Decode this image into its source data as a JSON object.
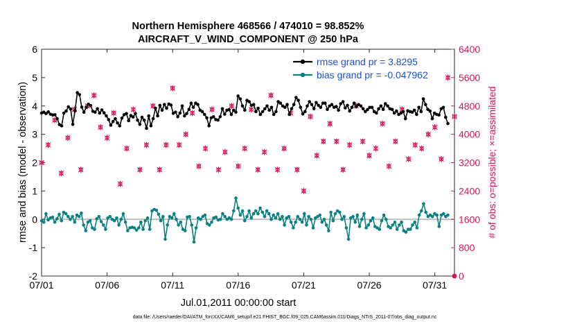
{
  "chart_data": {
    "type": "line",
    "title_line1": "Northern Hemisphere 468566 / 474010 = 98.852%",
    "title_line2": "AIRCRAFT_V_WIND_COMPONENT @ 250 hPa",
    "xlabel": "Jul.01,2011 00:00:00 start",
    "ylabel": "rmse and bias (model - observation)",
    "y2label": "# of obs: o=possible; ×=assimilated",
    "footer": "data file: /Users/raeder/DAI/ATM_forcXX/CAM6_setup/f.e21.FHIST_BGC.f09_025.CAM6assim.011/Diags_NTrS_2011-07/obs_diag_output.nc",
    "x_ticks": [
      "07/01",
      "07/06",
      "07/11",
      "07/16",
      "07/21",
      "07/26",
      "07/31"
    ],
    "x_tick_days": [
      0,
      5,
      10,
      15,
      20,
      25,
      30
    ],
    "xlim": [
      0,
      31.5
    ],
    "ylim": [
      -2,
      6
    ],
    "y_ticks": [
      "-2",
      "-1",
      "0",
      "1",
      "2",
      "3",
      "4",
      "5",
      "6"
    ],
    "y2lim": [
      0,
      6400
    ],
    "y2_ticks": [
      "0",
      "800",
      "1600",
      "2400",
      "3200",
      "4000",
      "4800",
      "5600",
      "6400"
    ],
    "legend": {
      "position": "top-right",
      "rmse_label": "rmse grand pr = 3.8295",
      "bias_label": "bias grand pr = -0.047962"
    },
    "colors": {
      "rmse": "#000000",
      "bias": "#0a8080",
      "obs": "#d6145a",
      "zero": "#bbbbbb",
      "legend_text": "#1a4fd6"
    },
    "series": [
      {
        "name": "rmse",
        "values": [
          3.75,
          3.78,
          3.73,
          3.79,
          3.71,
          3.68,
          3.69,
          3.55,
          3.34,
          3.3,
          3.75,
          3.82,
          3.97,
          3.89,
          3.35,
          3.83,
          4.47,
          4.4,
          3.96,
          3.78,
          3.95,
          4.06,
          4.01,
          3.81,
          3.78,
          3.9,
          3.75,
          3.86,
          3.76,
          3.65,
          3.52,
          3.32,
          3.45,
          3.55,
          3.4,
          3.3,
          3.57,
          3.69,
          3.73,
          3.48,
          3.66,
          3.61,
          3.73,
          3.5,
          3.35,
          3.6,
          3.5,
          3.21,
          3.65,
          3.3,
          3.55,
          3.92,
          3.65,
          4.02,
          3.85,
          4.05,
          3.92,
          4.07,
          4.03,
          3.74,
          3.78,
          3.62,
          3.75,
          4.0,
          3.65,
          3.73,
          3.88,
          4.1,
          3.95,
          4.1,
          4.05,
          3.85,
          3.8,
          3.7,
          3.58,
          3.3,
          3.58,
          3.62,
          3.52,
          3.5,
          3.62,
          3.9,
          3.71,
          3.85,
          3.87,
          3.7,
          3.85,
          3.78,
          4.35,
          4.25,
          4.0,
          3.85,
          4.2,
          4.15,
          4.02,
          4.05,
          3.8,
          3.92,
          3.7,
          3.8,
          3.9,
          4.0,
          3.85,
          3.95,
          3.7,
          3.8,
          4.15,
          4.1,
          4.0,
          3.95,
          4.05,
          3.7,
          3.9,
          4.05,
          4.3,
          4.2,
          3.95,
          3.72,
          3.8,
          4.0,
          4.15,
          4.05,
          3.9,
          4.12,
          4.02,
          3.95,
          4.1,
          4.1,
          3.88,
          4.0,
          4.05,
          3.95,
          3.98,
          3.85,
          4.08,
          4.15,
          3.93,
          4.02,
          3.82,
          3.95,
          4.1,
          3.98,
          4.05,
          4.0,
          3.9,
          3.8,
          3.87,
          3.95,
          3.95,
          3.8,
          3.75,
          3.9,
          4.0,
          3.88,
          4.08,
          4.0,
          3.9,
          3.88,
          3.75,
          3.82,
          3.7,
          3.75,
          3.8,
          3.55,
          3.83,
          3.8,
          3.78,
          3.85,
          3.7,
          3.95,
          3.8,
          4.25,
          4.05,
          3.88,
          3.82,
          3.55,
          3.75,
          3.7,
          3.68,
          3.9,
          3.95,
          3.6,
          3.38
        ]
      },
      {
        "name": "bias",
        "values": [
          -0.05,
          -0.1,
          0.2,
          -0.02,
          0.05,
          0.08,
          -0.1,
          0.02,
          0.18,
          -0.05,
          0.25,
          0.2,
          0.1,
          0.0,
          0.1,
          -0.1,
          0.15,
          0.1,
          0.22,
          -0.2,
          -0.4,
          -0.1,
          -0.05,
          -0.3,
          -0.35,
          0.02,
          0.1,
          -0.08,
          -0.2,
          -0.35,
          0.05,
          0.1,
          0.0,
          -0.05,
          0.05,
          -0.2,
          0.0,
          0.2,
          -0.1,
          -0.4,
          -0.3,
          -0.28,
          -0.3,
          -0.38,
          -0.3,
          -0.1,
          -0.35,
          -0.05,
          0.05,
          -0.35,
          0.3,
          0.35,
          0.32,
          0.18,
          -0.05,
          0.1,
          -0.7,
          -0.2,
          0.1,
          0.05,
          0.2,
          0.0,
          -0.2,
          -0.1,
          -0.35,
          -0.4,
          0.08,
          0.1,
          -0.2,
          -0.8,
          -0.3,
          0.05,
          0.0,
          0.1,
          0.15,
          -0.15,
          -0.2,
          -0.1,
          0.05,
          0.08,
          -0.02,
          0.0,
          0.2,
          0.1,
          0.0,
          0.05,
          0.0,
          0.3,
          0.75,
          0.4,
          0.15,
          0.3,
          -0.05,
          0.1,
          0.3,
          0.05,
          0.2,
          0.3,
          0.2,
          0.4,
          0.25,
          0.1,
          0.3,
          0.2,
          0.0,
          0.15,
          0.05,
          0.2,
          0.0,
          0.1,
          -0.2,
          0.05,
          0.1,
          -0.1,
          -0.3,
          -0.1,
          0.1,
          0.0,
          -0.1,
          0.2,
          -0.2,
          0.1,
          0.0,
          -0.3,
          0.05,
          0.1,
          0.15,
          -0.1,
          0.0,
          -0.2,
          -0.4,
          0.25,
          -0.05,
          0.2,
          0.3,
          0.25,
          0.0,
          0.1,
          -0.3,
          -0.7,
          0.05,
          0.1,
          -0.1,
          0.15,
          -0.25,
          0.0,
          0.2,
          -0.3,
          -0.2,
          -0.05,
          0.05,
          -0.25,
          -0.3,
          -0.35,
          -0.05,
          0.15,
          0.0,
          -0.25,
          -0.3,
          -0.2,
          -0.1,
          -0.35,
          -0.2,
          -0.1,
          -0.4,
          -0.45,
          -0.35,
          -0.35,
          -0.2,
          -0.1,
          -0.3,
          0.15,
          0.3,
          0.55,
          0.25,
          0.1,
          0.15,
          0.1,
          0.2,
          0.15,
          -0.25,
          0.15,
          0.2,
          0.1,
          0.15
        ]
      }
    ],
    "obs_counts": {
      "name": "possible/assimilated observations",
      "days": [
        0.0,
        0.5,
        1.0,
        1.5,
        2.0,
        2.5,
        3.0,
        3.5,
        4.0,
        4.5,
        5.0,
        5.5,
        6.0,
        6.5,
        7.0,
        7.5,
        8.0,
        8.5,
        9.0,
        9.5,
        10.0,
        10.5,
        11.0,
        11.5,
        12.0,
        12.5,
        13.0,
        13.5,
        14.0,
        14.5,
        15.0,
        15.5,
        16.0,
        16.5,
        17.0,
        17.5,
        18.0,
        18.5,
        19.0,
        19.5,
        20.0,
        20.5,
        21.0,
        21.5,
        22.0,
        22.5,
        23.0,
        23.5,
        24.0,
        24.5,
        25.0,
        25.5,
        26.0,
        26.5,
        27.0,
        27.5,
        28.0,
        28.5,
        29.0,
        29.5,
        30.0,
        30.5,
        31.0,
        31.5
      ],
      "values": [
        3200,
        3700,
        4400,
        2900,
        3900,
        4700,
        3000,
        4800,
        5100,
        4200,
        3900,
        4600,
        2600,
        3600,
        4700,
        3000,
        3700,
        4800,
        3000,
        3700,
        5300,
        3700,
        4000,
        4600,
        3100,
        3600,
        4700,
        3000,
        3500,
        4800,
        3100,
        3600,
        4700,
        3000,
        3500,
        5100,
        3000,
        3600,
        4600,
        3000,
        2400,
        4500,
        3400,
        3800,
        4300,
        3800,
        3000,
        3700,
        4800,
        3800,
        3400,
        3600,
        4300,
        3100,
        3800,
        4700,
        3300,
        3700,
        3600,
        4000,
        4200,
        3300,
        5600,
        4500
      ]
    }
  }
}
